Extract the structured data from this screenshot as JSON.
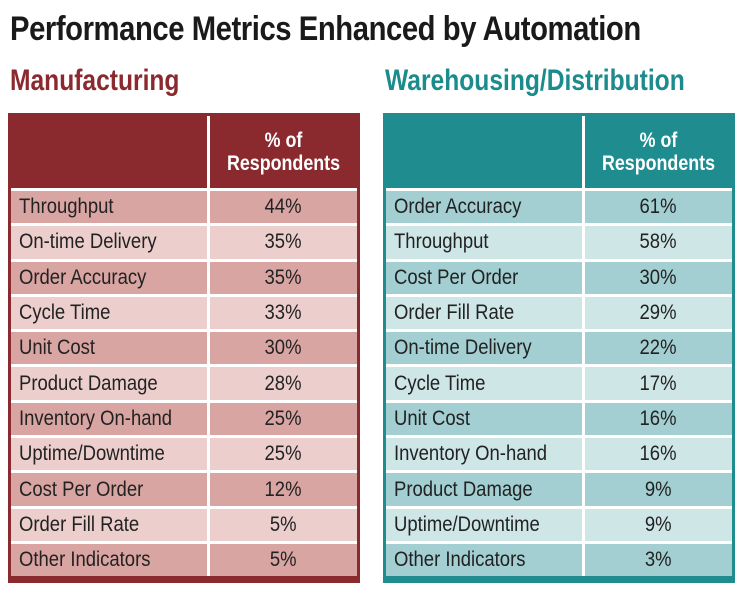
{
  "title": "Performance Metrics Enhanced by Automation",
  "colors": {
    "manufacturing": "#8b2a2e",
    "warehousing": "#1f8d8f"
  },
  "chart_data": [
    {
      "type": "table",
      "title": "Manufacturing",
      "columns": [
        "",
        "% of Respondents"
      ],
      "rows": [
        {
          "metric": "Throughput",
          "value": "44%"
        },
        {
          "metric": "On-time Delivery",
          "value": "35%"
        },
        {
          "metric": "Order Accuracy",
          "value": "35%"
        },
        {
          "metric": "Cycle Time",
          "value": "33%"
        },
        {
          "metric": "Unit Cost",
          "value": "30%"
        },
        {
          "metric": "Product Damage",
          "value": "28%"
        },
        {
          "metric": "Inventory On-hand",
          "value": "25%"
        },
        {
          "metric": "Uptime/Downtime",
          "value": "25%"
        },
        {
          "metric": "Cost Per Order",
          "value": "12%"
        },
        {
          "metric": "Order Fill Rate",
          "value": "5%"
        },
        {
          "metric": "Other Indicators",
          "value": "5%"
        }
      ]
    },
    {
      "type": "table",
      "title": "Warehousing/Distribution",
      "columns": [
        "",
        "% of Respondents"
      ],
      "rows": [
        {
          "metric": "Order Accuracy",
          "value": "61%"
        },
        {
          "metric": "Throughput",
          "value": "58%"
        },
        {
          "metric": "Cost Per Order",
          "value": "30%"
        },
        {
          "metric": "Order Fill Rate",
          "value": "29%"
        },
        {
          "metric": "On-time Delivery",
          "value": "22%"
        },
        {
          "metric": "Cycle Time",
          "value": "17%"
        },
        {
          "metric": "Unit Cost",
          "value": "16%"
        },
        {
          "metric": "Inventory On-hand",
          "value": "16%"
        },
        {
          "metric": "Product Damage",
          "value": "9%"
        },
        {
          "metric": "Uptime/Downtime",
          "value": "9%"
        },
        {
          "metric": "Other Indicators",
          "value": "3%"
        }
      ]
    }
  ]
}
